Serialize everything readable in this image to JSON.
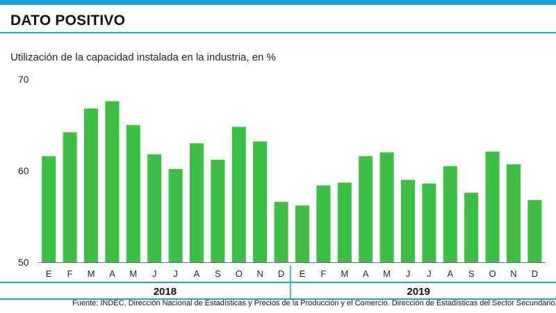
{
  "header": {
    "title": "DATO POSITIVO"
  },
  "chart_data": {
    "type": "bar",
    "title": "DATO POSITIVO",
    "subtitle": "Utilización de la capacidad instalada en la industria, en %",
    "xlabel": "",
    "ylabel": "",
    "ylim": [
      50,
      70
    ],
    "yticks": [
      50,
      60,
      70
    ],
    "grid": false,
    "legend": "none",
    "categories": [
      "E",
      "F",
      "M",
      "A",
      "M",
      "J",
      "J",
      "A",
      "S",
      "O",
      "N",
      "D",
      "E",
      "F",
      "M",
      "A",
      "M",
      "J",
      "J",
      "A",
      "S",
      "O",
      "N",
      "D"
    ],
    "groups": [
      {
        "label": "2018",
        "start": 0,
        "end": 11
      },
      {
        "label": "2019",
        "start": 12,
        "end": 23
      }
    ],
    "values": [
      61.6,
      64.2,
      66.8,
      67.6,
      65.0,
      61.8,
      60.2,
      63.0,
      61.2,
      64.8,
      63.2,
      56.6,
      56.2,
      58.4,
      58.7,
      61.6,
      62.0,
      59.0,
      58.6,
      60.5,
      57.6,
      62.1,
      60.7,
      56.8
    ],
    "bar_color": "#3cbf43",
    "accent_color": "#1aa3dc",
    "source": "Fuente: INDEC, Dirección Nacional de Estadísticas y Precios de la Producción y el Comercio. Dirección de Estadísticas del Sector Secundario."
  }
}
